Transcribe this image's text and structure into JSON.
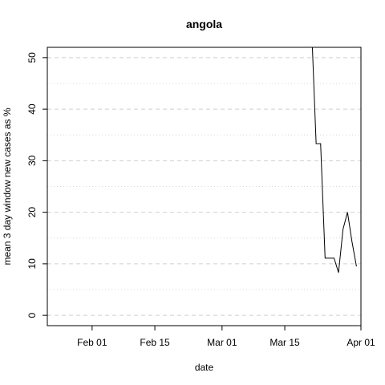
{
  "chart_data": {
    "type": "line",
    "title": "angola",
    "xlabel": "date",
    "ylabel": "mean  3  day window new cases as %",
    "x_ticks": [
      "Feb 01",
      "Feb 15",
      "Mar 01",
      "Mar 15",
      "Apr 01"
    ],
    "x_tick_dates": [
      "2020-02-01",
      "2020-02-15",
      "2020-03-01",
      "2020-03-15",
      "2020-04-01"
    ],
    "xlim": [
      "2020-01-22",
      "2020-04-01"
    ],
    "y_ticks": [
      0,
      10,
      20,
      30,
      40,
      50
    ],
    "ylim": [
      -2,
      52
    ],
    "grid": true,
    "series": [
      {
        "x": [
          "2020-03-21",
          "2020-03-22",
          "2020-03-23",
          "2020-03-24",
          "2020-03-25",
          "2020-03-26",
          "2020-03-27",
          "2020-03-28",
          "2020-03-29",
          "2020-03-30",
          "2020-03-31"
        ],
        "values": [
          55.6,
          33.3,
          33.3,
          11.1,
          11.1,
          11.1,
          8.3,
          16.7,
          20.0,
          14.3,
          9.5
        ]
      }
    ]
  }
}
